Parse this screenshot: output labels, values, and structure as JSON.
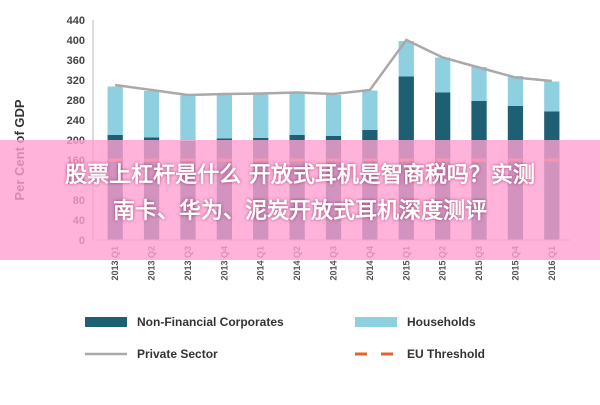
{
  "chart_data": {
    "type": "bar",
    "ylabel": "Per Cent of GDP",
    "ylim": [
      0,
      440
    ],
    "yticks": [
      0,
      40,
      80,
      120,
      160,
      200,
      240,
      280,
      320,
      360,
      400,
      440
    ],
    "grid": false,
    "legend_position": "bottom",
    "categories": [
      "2013 Q1",
      "2013 Q2",
      "2013 Q3",
      "2013 Q4",
      "2014 Q1",
      "2014 Q2",
      "2014 Q3",
      "2014 Q4",
      "2015 Q1",
      "2015 Q2",
      "2015 Q3",
      "2015 Q4",
      "2016 Q1"
    ],
    "series": [
      {
        "name": "Non-Financial Corporates",
        "kind": "bar",
        "color": "#1f5f73",
        "values": [
          210,
          205,
          198,
          203,
          204,
          210,
          208,
          220,
          327,
          295,
          278,
          268,
          257
        ]
      },
      {
        "name": "Households",
        "kind": "bar",
        "color": "#8fd0e0",
        "values": [
          97,
          93,
          91,
          87,
          88,
          83,
          82,
          79,
          71,
          70,
          68,
          60,
          60
        ]
      },
      {
        "name": "Private Sector",
        "kind": "line",
        "color": "#a9a9a9",
        "values": [
          310,
          300,
          290,
          292,
          293,
          295,
          292,
          300,
          400,
          365,
          345,
          325,
          318
        ]
      },
      {
        "name": "EU Threshold",
        "kind": "dashed",
        "color": "#e8632b",
        "values": [
          160,
          160,
          160,
          160,
          160,
          160,
          160,
          160,
          160,
          160,
          160,
          160,
          160
        ]
      }
    ]
  },
  "colors": {
    "banner": "#ffa0d2",
    "axis": "#999999"
  },
  "overlay": {
    "line1": "股票上杠杆是什么 开放式耳机是智商税吗？实测",
    "line2": "南卡、华为、泥炭开放式耳机深度测评"
  }
}
